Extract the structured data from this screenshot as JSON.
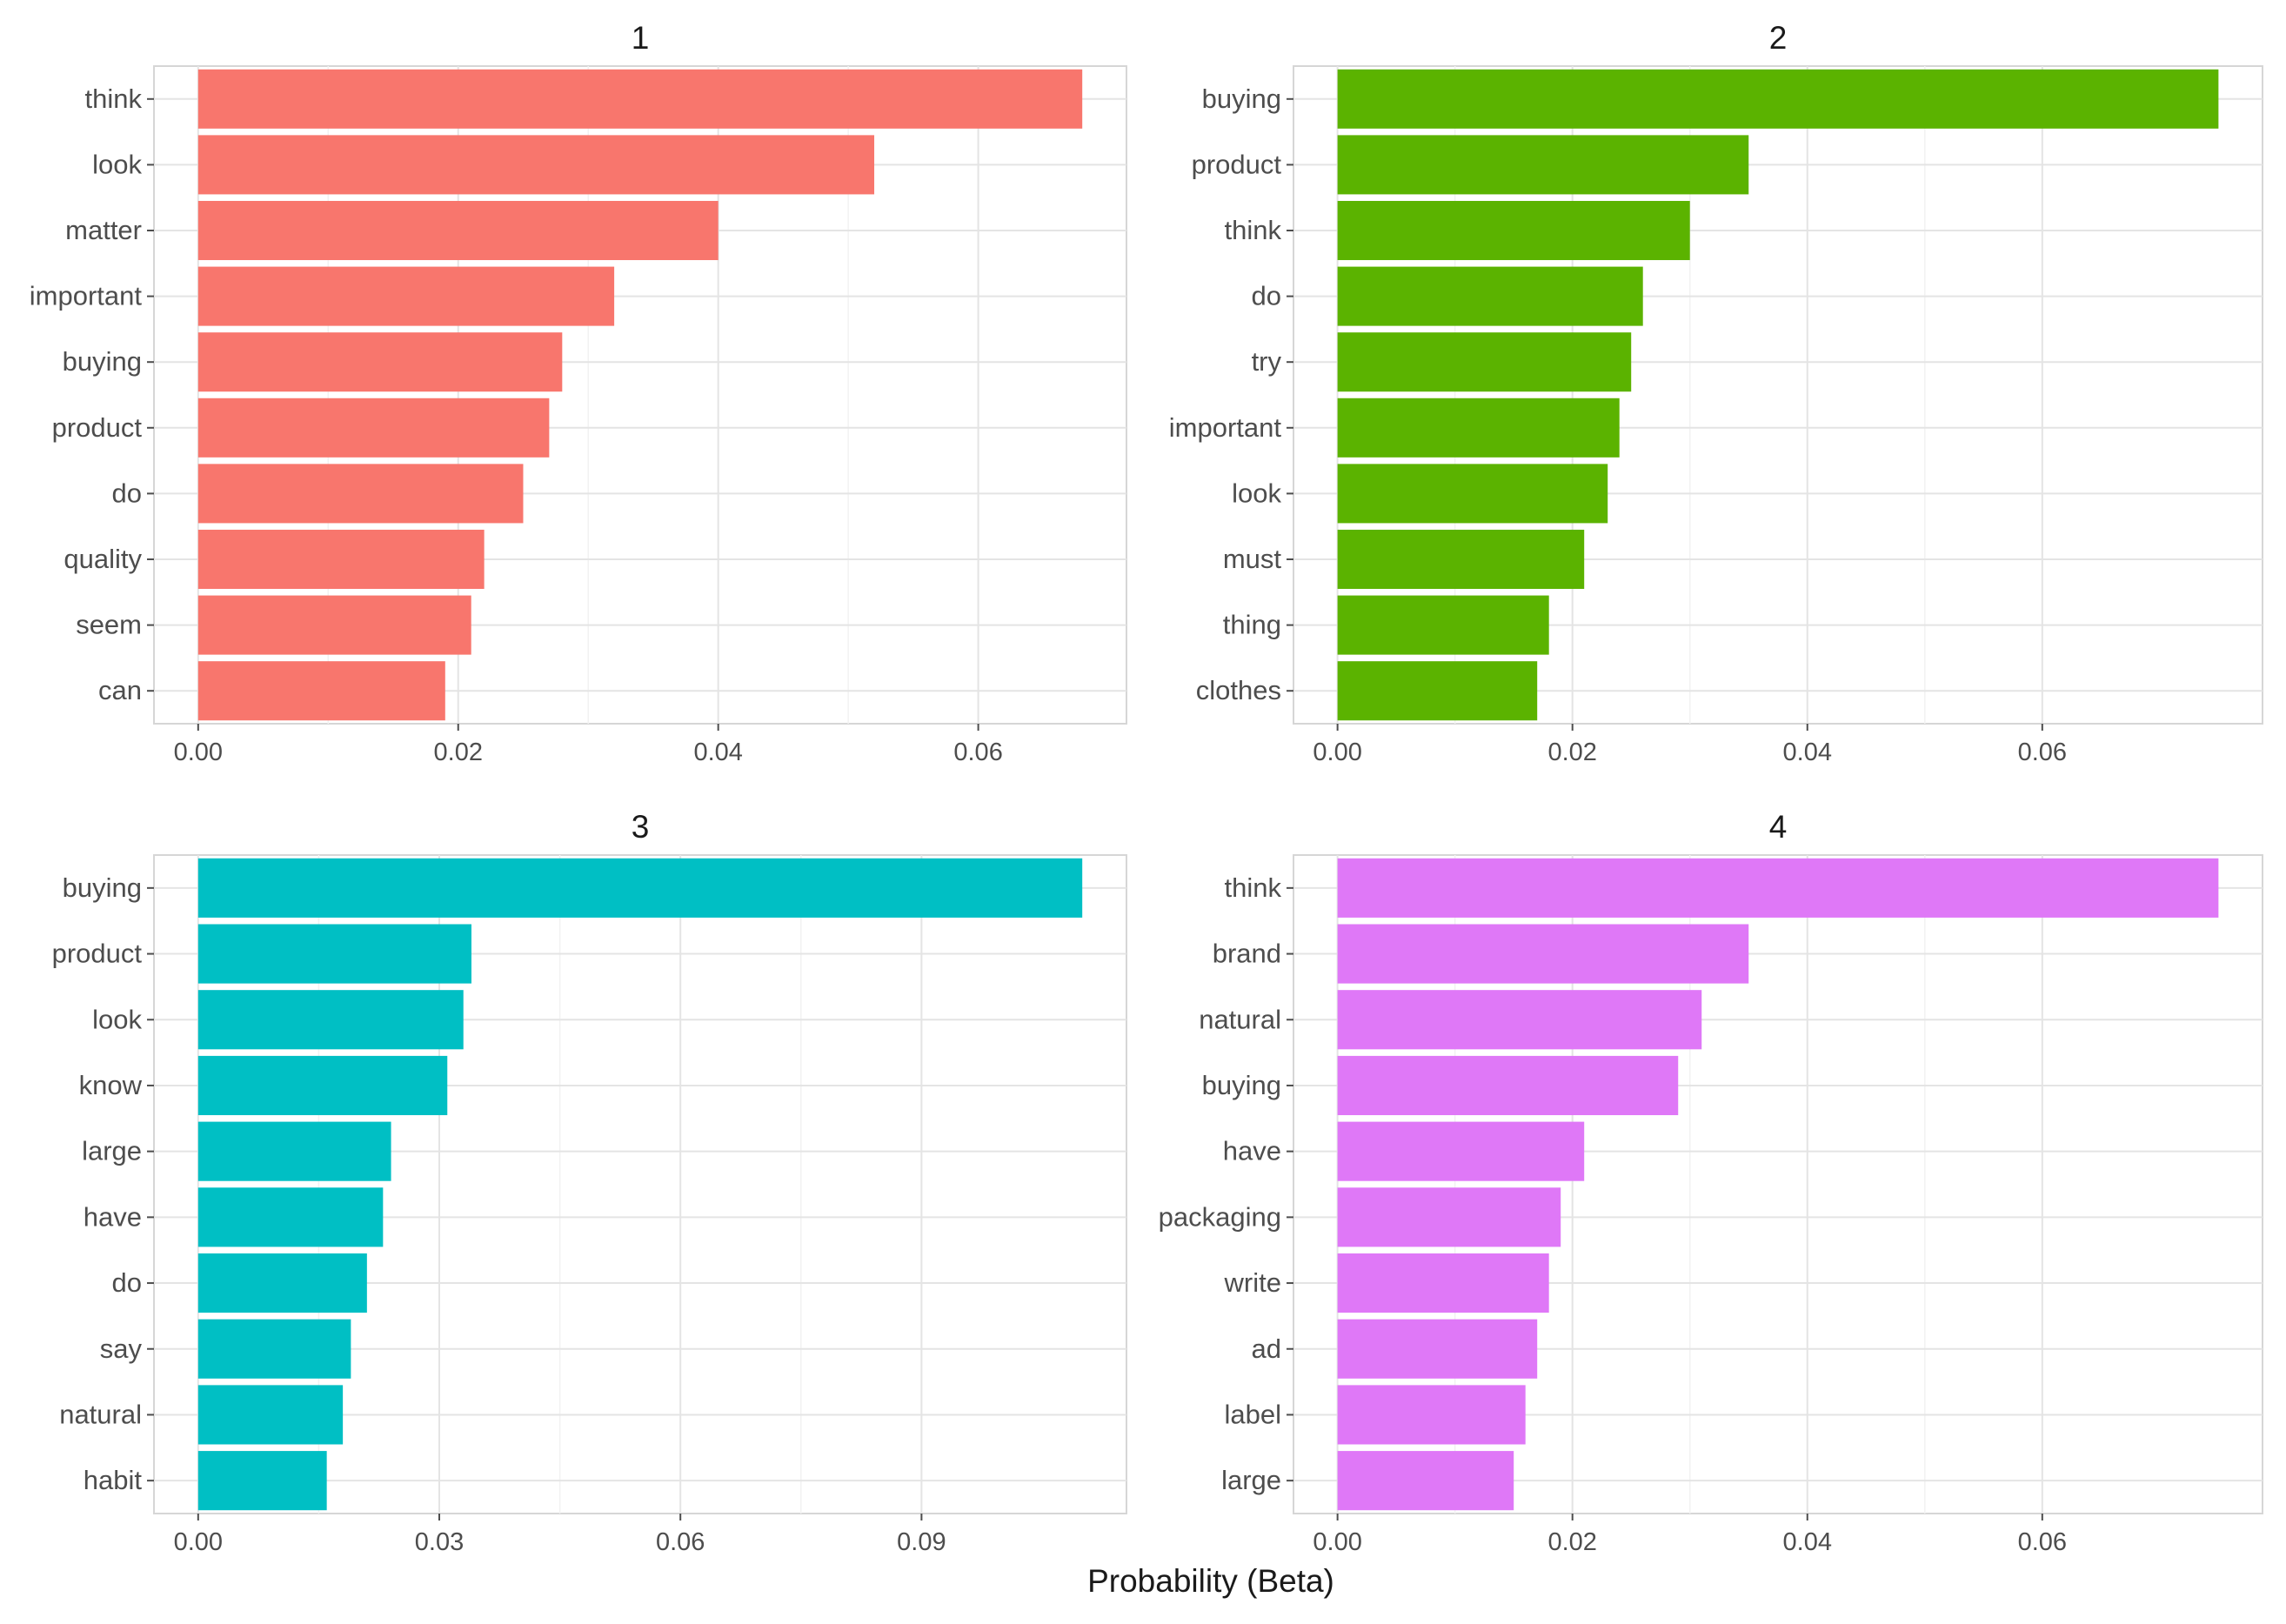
{
  "chart_data": {
    "type": "bar",
    "orientation": "horizontal",
    "x_axis_title": "Probability (Beta)",
    "grid": true,
    "legend": "none",
    "panels": [
      {
        "title": "1",
        "color": "#F8766D",
        "categories": [
          "think",
          "look",
          "matter",
          "important",
          "buying",
          "product",
          "do",
          "quality",
          "seem",
          "can"
        ],
        "values": [
          0.068,
          0.052,
          0.04,
          0.032,
          0.028,
          0.027,
          0.025,
          0.022,
          0.021,
          0.019
        ],
        "xlim": [
          -0.0034,
          0.0714
        ],
        "xticks": [
          0.0,
          0.02,
          0.04,
          0.06
        ],
        "xtick_labels": [
          "0.00",
          "0.02",
          "0.04",
          "0.06"
        ]
      },
      {
        "title": "2",
        "color": "#5BB300",
        "categories": [
          "buying",
          "product",
          "think",
          "do",
          "try",
          "important",
          "look",
          "must",
          "thing",
          "clothes"
        ],
        "values": [
          0.075,
          0.035,
          0.03,
          0.026,
          0.025,
          0.024,
          0.023,
          0.021,
          0.018,
          0.017
        ],
        "xlim": [
          -0.00375,
          0.07875
        ],
        "xticks": [
          0.0,
          0.02,
          0.04,
          0.06
        ],
        "xtick_labels": [
          "0.00",
          "0.02",
          "0.04",
          "0.06"
        ]
      },
      {
        "title": "3",
        "color": "#00BFC4",
        "categories": [
          "buying",
          "product",
          "look",
          "know",
          "large",
          "have",
          "do",
          "say",
          "natural",
          "habit"
        ],
        "values": [
          0.11,
          0.034,
          0.033,
          0.031,
          0.024,
          0.023,
          0.021,
          0.019,
          0.018,
          0.016
        ],
        "xlim": [
          -0.0055,
          0.1155
        ],
        "xticks": [
          0.0,
          0.03,
          0.06,
          0.09
        ],
        "xtick_labels": [
          "0.00",
          "0.03",
          "0.06",
          "0.09"
        ]
      },
      {
        "title": "4",
        "color": "#DF78F7",
        "categories": [
          "think",
          "brand",
          "natural",
          "buying",
          "have",
          "packaging",
          "write",
          "ad",
          "label",
          "large"
        ],
        "values": [
          0.075,
          0.035,
          0.031,
          0.029,
          0.021,
          0.019,
          0.018,
          0.017,
          0.016,
          0.015
        ],
        "xlim": [
          -0.00375,
          0.07875
        ],
        "xticks": [
          0.0,
          0.02,
          0.04,
          0.06
        ],
        "xtick_labels": [
          "0.00",
          "0.02",
          "0.04",
          "0.06"
        ]
      }
    ]
  }
}
